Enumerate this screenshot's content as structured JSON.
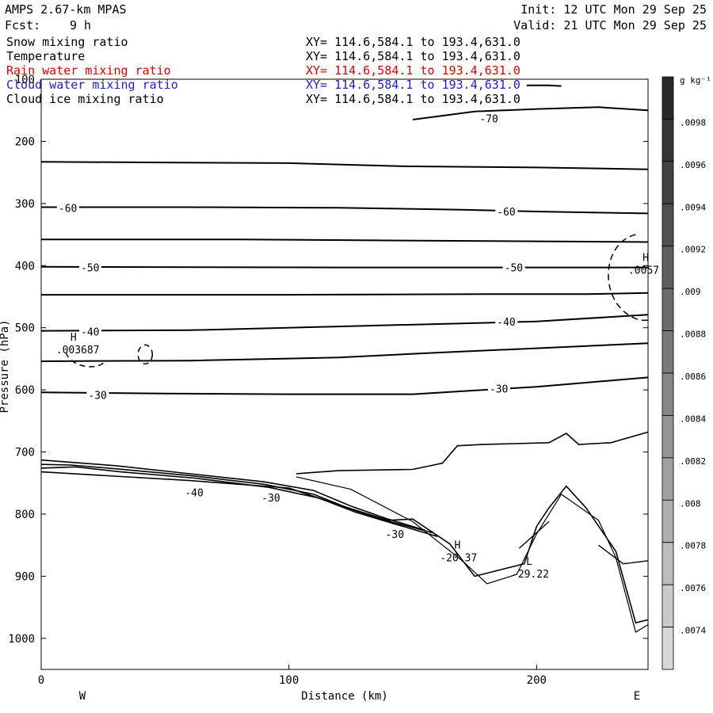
{
  "header": {
    "model": "AMPS 2.67-km MPAS",
    "fcst_label": "Fcst:",
    "fcst_value": "9 h",
    "init": "Init: 12 UTC Mon 29 Sep 25",
    "valid": "Valid: 21 UTC Mon 29 Sep 25"
  },
  "legend": [
    {
      "label": "Snow mixing ratio",
      "xy": "XY= 114.6,584.1 to 193.4,631.0",
      "color": "#000000"
    },
    {
      "label": "Temperature",
      "xy": "XY= 114.6,584.1 to 193.4,631.0",
      "color": "#000000"
    },
    {
      "label": "Rain water mixing ratio",
      "xy": "XY= 114.6,584.1 to 193.4,631.0",
      "color": "#e00000"
    },
    {
      "label": "Cloud water mixing ratio",
      "xy": "XY= 114.6,584.1 to 193.4,631.0",
      "color": "#2020d0"
    },
    {
      "label": "Cloud ice mixing ratio",
      "xy": "XY= 114.6,584.1 to 193.4,631.0",
      "color": "#000000"
    }
  ],
  "chart_data": {
    "type": "contour-cross-section",
    "xlabel": "Distance (km)",
    "ylabel": "Pressure (hPa)",
    "xlim": [
      0,
      245
    ],
    "ylim": [
      1050,
      100
    ],
    "x_ticks": [
      0,
      100,
      200
    ],
    "y_ticks": [
      100,
      200,
      300,
      400,
      500,
      600,
      700,
      800,
      900,
      1000
    ],
    "x_end_labels": {
      "left": "W",
      "right": "E"
    },
    "temperature_contours": [
      {
        "points": [
          [
            0,
            233
          ],
          [
            50,
            234
          ],
          [
            100,
            235
          ],
          [
            145,
            240
          ],
          [
            200,
            242
          ],
          [
            245,
            245
          ]
        ]
      },
      {
        "label": "-60",
        "points": [
          [
            0,
            306
          ],
          [
            60,
            306
          ],
          [
            120,
            307
          ],
          [
            170,
            310
          ],
          [
            200,
            313
          ],
          [
            245,
            316
          ]
        ]
      },
      {
        "points": [
          [
            0,
            358
          ],
          [
            80,
            358
          ],
          [
            160,
            360
          ],
          [
            245,
            362
          ]
        ]
      },
      {
        "label": "-50",
        "points": [
          [
            0,
            402
          ],
          [
            120,
            403
          ],
          [
            200,
            403
          ],
          [
            245,
            403
          ]
        ]
      },
      {
        "points": [
          [
            0,
            447
          ],
          [
            100,
            447
          ],
          [
            180,
            446
          ],
          [
            220,
            446
          ],
          [
            245,
            444
          ]
        ]
      },
      {
        "label": "-40",
        "points": [
          [
            0,
            505
          ],
          [
            60,
            504
          ],
          [
            120,
            498
          ],
          [
            170,
            493
          ],
          [
            200,
            490
          ],
          [
            245,
            479
          ]
        ]
      },
      {
        "points": [
          [
            0,
            554
          ],
          [
            60,
            553
          ],
          [
            120,
            548
          ],
          [
            160,
            540
          ],
          [
            200,
            533
          ],
          [
            245,
            525
          ]
        ]
      },
      {
        "label": "-30",
        "points": [
          [
            0,
            604
          ],
          [
            50,
            606
          ],
          [
            100,
            607
          ],
          [
            150,
            607
          ],
          [
            200,
            595
          ],
          [
            245,
            580
          ]
        ]
      },
      {
        "label": "-70",
        "points": [
          [
            150,
            165
          ],
          [
            175,
            152
          ],
          [
            200,
            148
          ],
          [
            225,
            145
          ],
          [
            245,
            150
          ]
        ]
      }
    ],
    "contour_labels": [
      {
        "text": "-70",
        "x": 177,
        "y": 163
      },
      {
        "text": "-60",
        "x": 7,
        "y": 307
      },
      {
        "text": "-60",
        "x": 184,
        "y": 313
      },
      {
        "text": "-50",
        "x": 16,
        "y": 403
      },
      {
        "text": "-50",
        "x": 187,
        "y": 403
      },
      {
        "text": "-40",
        "x": 16,
        "y": 506
      },
      {
        "text": "-40",
        "x": 184,
        "y": 490
      },
      {
        "text": "-30",
        "x": 19,
        "y": 608
      },
      {
        "text": "-30",
        "x": 181,
        "y": 598
      },
      {
        "text": "-40",
        "x": 58,
        "y": 765
      },
      {
        "text": "-30",
        "x": 89,
        "y": 773
      },
      {
        "text": "-30",
        "x": 139,
        "y": 832
      }
    ],
    "extrema": [
      {
        "type": "H",
        "value": ".003687",
        "x": 6,
        "y": 531
      },
      {
        "type": "H",
        "value": ".0057",
        "x": 237,
        "y": 403
      },
      {
        "type": "H",
        "value": "-20.37",
        "x": 161,
        "y": 866
      },
      {
        "type": "L",
        "value": "-29.22",
        "x": 190,
        "y": 892
      }
    ],
    "colorbar": {
      "unit": "g kg⁻¹",
      "labels": [
        ".0098",
        ".0096",
        ".0094",
        ".0092",
        ".009",
        ".0088",
        ".0086",
        ".0084",
        ".0082",
        ".008",
        ".0078",
        ".0076",
        ".0074"
      ]
    }
  }
}
